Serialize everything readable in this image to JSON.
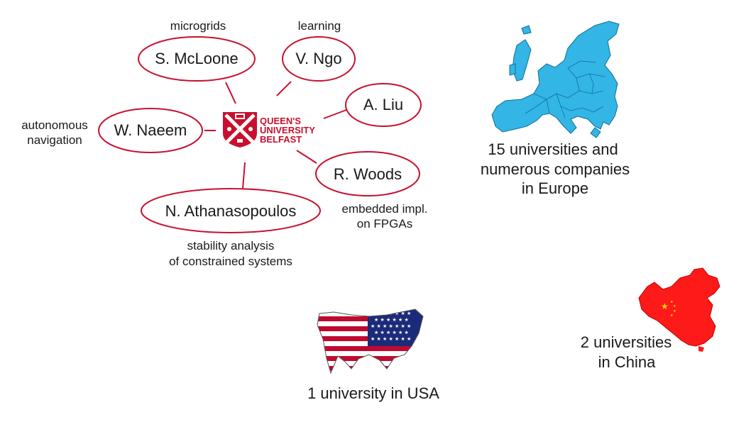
{
  "colors": {
    "qub_red": "#c8102e",
    "europe_blue": "#33b5e5",
    "china_red": "#ff1a1a",
    "china_star": "#ffde00",
    "usa_red": "#bf0a30",
    "usa_blue": "#1c2a7a"
  },
  "qub_logo": {
    "line1": "QUEEN'S",
    "line2": "UNIVERSITY",
    "line3": "BELFAST"
  },
  "people": [
    {
      "name": "S. McLoone",
      "topic": "microgrids"
    },
    {
      "name": "V. Ngo",
      "topic": "learning"
    },
    {
      "name": "A. Liu",
      "topic": ""
    },
    {
      "name": "W. Naeem",
      "topic_line1": "autonomous",
      "topic_line2": "navigation"
    },
    {
      "name": "R. Woods",
      "topic_line1": "embedded impl.",
      "topic_line2": "on FPGAs"
    },
    {
      "name": "N. Athanasopoulos",
      "topic_line1": "stability analysis",
      "topic_line2": "of constrained systems"
    }
  ],
  "regions": {
    "europe": {
      "line1": "15 universities and",
      "line2": "numerous companies",
      "line3": "in Europe",
      "icon": "europe-map-icon"
    },
    "usa": {
      "line1": "1 university in USA",
      "icon": "usa-flag-map-icon"
    },
    "china": {
      "line1": "2 universities",
      "line2": "in China",
      "icon": "china-map-icon"
    }
  }
}
